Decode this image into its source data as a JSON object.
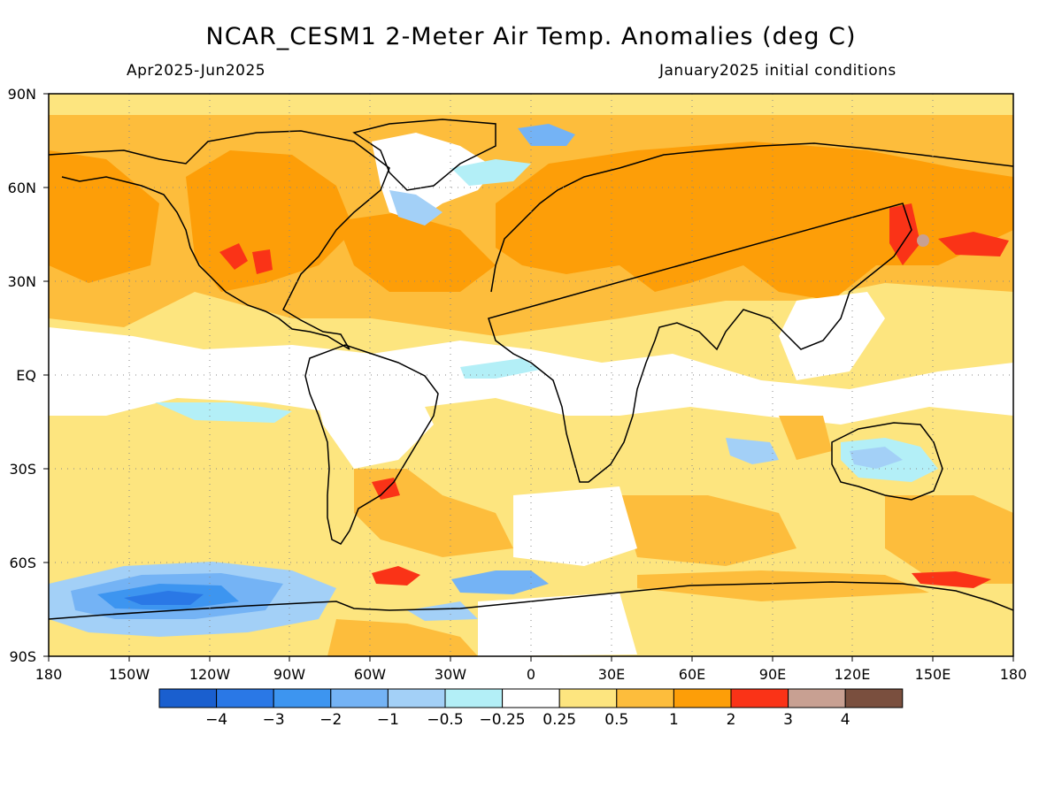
{
  "map": {
    "title": "NCAR_CESM1 2-Meter Air Temp. Anomalies (deg C)",
    "period": "Apr2025-Jun2025",
    "init": "January2025 initial conditions",
    "lat_labels": [
      "90N",
      "60N",
      "30N",
      "EQ",
      "30S",
      "60S",
      "90S"
    ],
    "lon_labels": [
      "180",
      "150W",
      "120W",
      "90W",
      "60W",
      "30W",
      "0",
      "30E",
      "60E",
      "90E",
      "120E",
      "150E",
      "180"
    ]
  },
  "colorbar": {
    "colors": [
      "#1a5fcf",
      "#2a78e6",
      "#3d95f0",
      "#74b3f5",
      "#a3d0f7",
      "#b3eff7",
      "#ffffff",
      "#fde57f",
      "#fdbd3c",
      "#fd9e08",
      "#fa3317",
      "#c8a092",
      "#7a4f3e"
    ],
    "labels": [
      "-4",
      "-3",
      "-2",
      "-1",
      "-0.5",
      "-0.25",
      "0.25",
      "0.5",
      "1",
      "2",
      "3",
      "4"
    ]
  },
  "colors": {
    "land_outline": "#000000",
    "grid": "#888888",
    "frame": "#000000"
  }
}
